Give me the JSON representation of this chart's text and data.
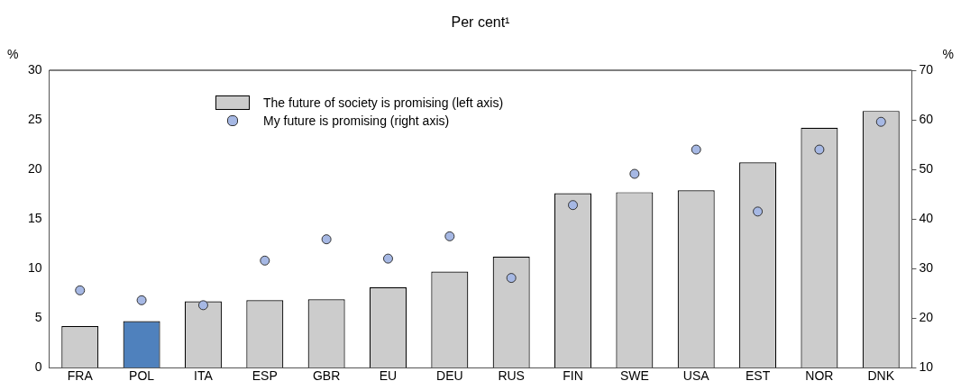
{
  "chart_data": {
    "type": "bar",
    "title": "Per cent¹",
    "ylabel": "%",
    "y2label": "%",
    "categories": [
      "FRA",
      "POL",
      "ITA",
      "ESP",
      "GBR",
      "EU",
      "DEU",
      "RUS",
      "FIN",
      "SWE",
      "USA",
      "EST",
      "NOR",
      "DNK"
    ],
    "series": [
      {
        "name": "The future of society is promising (left axis)",
        "colors": [
          "#cccccc",
          "#4f81bd",
          "#cccccc",
          "#cccccc",
          "#cccccc",
          "#cccccc",
          "#cccccc",
          "#cccccc",
          "#cccccc",
          "#cccccc",
          "#cccccc",
          "#cccccc",
          "#cccccc",
          "#cccccc"
        ],
        "values": [
          4.2,
          4.7,
          6.7,
          6.8,
          6.9,
          8.1,
          9.7,
          11.2,
          17.6,
          17.7,
          17.9,
          20.7,
          24.2,
          25.9
        ]
      },
      {
        "name": "My future is promising (right axis)",
        "type": "scatter",
        "axis": "y2",
        "color": "#a6b8e4",
        "values": [
          25.6,
          23.6,
          22.6,
          31.6,
          35.9,
          32.0,
          36.5,
          28.1,
          42.8,
          49.1,
          54.0,
          41.5,
          54.0,
          59.6
        ]
      }
    ],
    "ylim": [
      0,
      30
    ],
    "yticks": [
      0,
      5,
      10,
      15,
      20,
      25,
      30
    ],
    "y2lim": [
      10,
      70
    ],
    "y2ticks": [
      10,
      20,
      30,
      40,
      50,
      60,
      70
    ],
    "grid": false,
    "legend": "top",
    "marker": "circle"
  }
}
